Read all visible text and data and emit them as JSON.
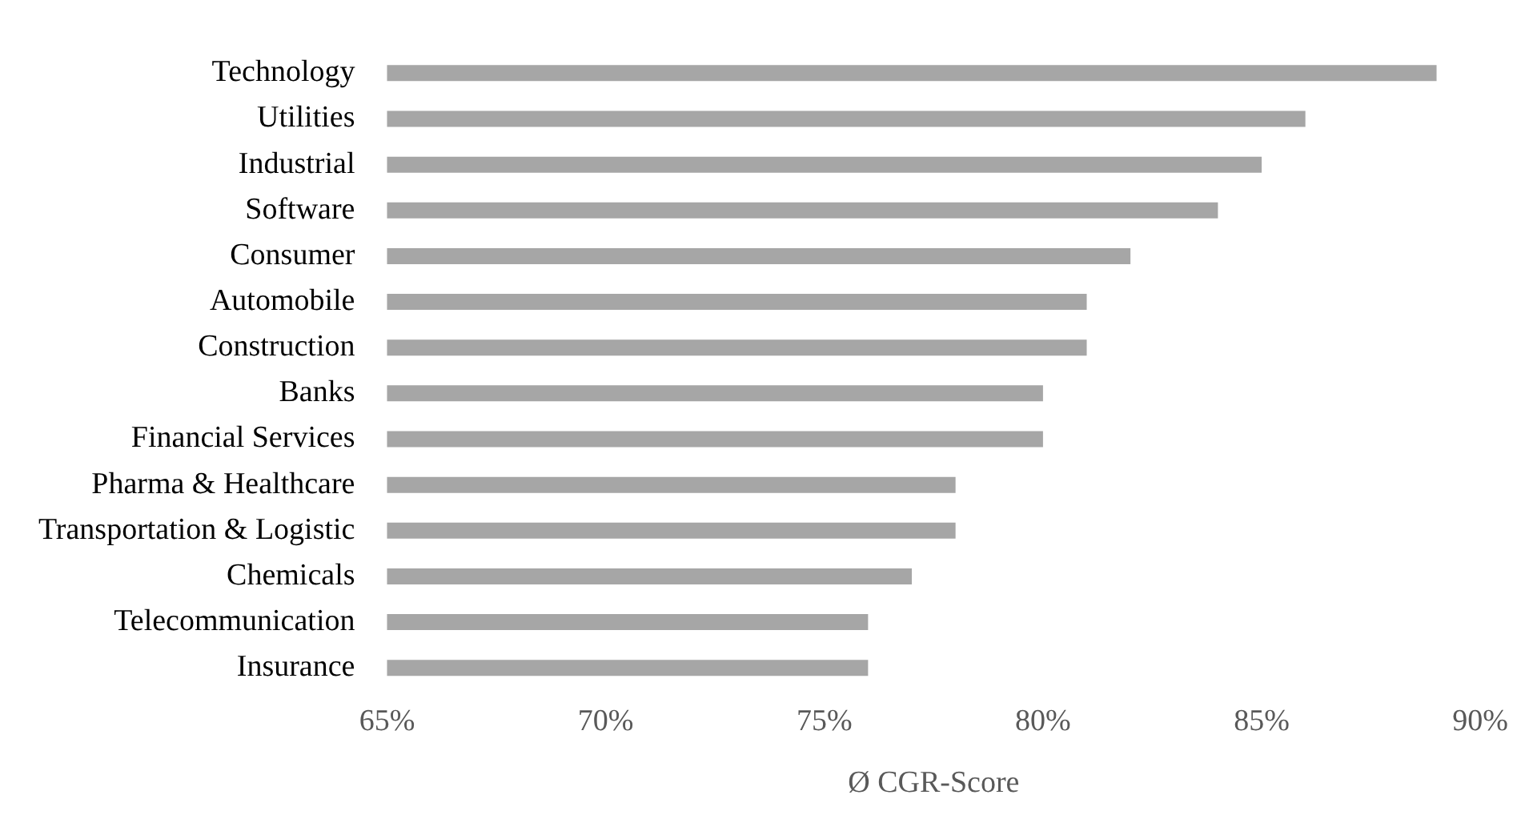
{
  "chart_data": {
    "type": "bar",
    "orientation": "horizontal",
    "xlabel": "Ø CGR-Score",
    "categories": [
      "Technology",
      "Utilities",
      "Industrial",
      "Software",
      "Consumer",
      "Automobile",
      "Construction",
      "Banks",
      "Financial Services",
      "Pharma & Healthcare",
      "Transportation & Logistic",
      "Chemicals",
      "Telecommunication",
      "Insurance"
    ],
    "values": [
      89,
      86,
      85,
      84,
      82,
      81,
      81,
      80,
      80,
      78,
      78,
      77,
      76,
      76
    ],
    "color": "#a6a6a6",
    "xlim": [
      65,
      90
    ],
    "xticks": [
      {
        "value": 65,
        "label": "65%"
      },
      {
        "value": 70,
        "label": "70%"
      },
      {
        "value": 75,
        "label": "75%"
      },
      {
        "value": 80,
        "label": "80%"
      },
      {
        "value": 85,
        "label": "85%"
      },
      {
        "value": 90,
        "label": "90%"
      }
    ],
    "grid": false,
    "legend": false
  }
}
